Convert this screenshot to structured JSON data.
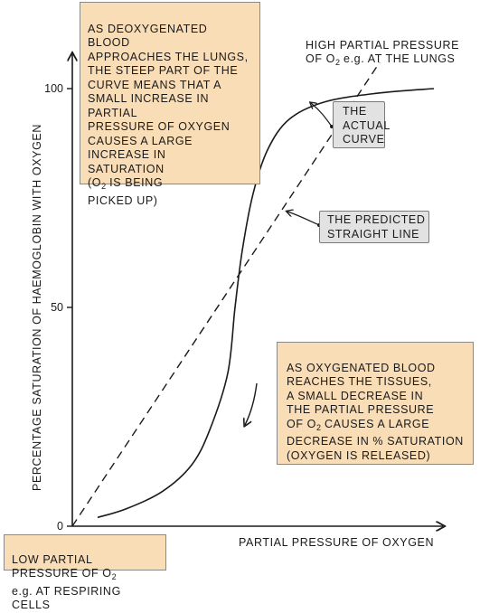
{
  "chart_data": {
    "type": "line",
    "title": "",
    "xlabel": "PARTIAL  PRESSURE  OF  OXYGEN",
    "ylabel": "PERCENTAGE  SATURATION  OF  HAEMOGLOBIN  WITH  OXYGEN",
    "xlim": [
      0,
      100
    ],
    "ylim": [
      0,
      100
    ],
    "y_ticks": [
      {
        "value": 0,
        "label": "0"
      },
      {
        "value": 50,
        "label": "50"
      },
      {
        "value": 100,
        "label": "100"
      }
    ],
    "series": [
      {
        "name": "THE  ACTUAL  CURVE",
        "style": "solid",
        "x": [
          7,
          15,
          25,
          33,
          38,
          43,
          45,
          47,
          50,
          54,
          60,
          70,
          85,
          100
        ],
        "y": [
          2,
          4,
          8,
          14,
          22,
          35,
          50,
          63,
          76,
          86,
          93,
          97,
          99,
          100
        ]
      },
      {
        "name": "THE  PREDICTED  STRAIGHT  LINE",
        "style": "dashed",
        "x": [
          0,
          85
        ],
        "y": [
          0,
          106
        ]
      }
    ],
    "grid": false,
    "legend": "none",
    "colors": {
      "curve": "#1a1a1a",
      "orange_box": "#f9ddb7",
      "grey_box": "#e2e2e2"
    }
  },
  "annotations": {
    "deoxygenated": "AS  DEOXYGENATED  BLOOD\nAPPROACHES  THE  LUNGS,\nTHE  STEEP  PART  OF  THE\nCURVE  MEANS  THAT  A\nSMALL  INCREASE  IN  PARTIAL\nPRESSURE  OF  OXYGEN\nCAUSES  A  LARGE\nINCREASE  IN\nSATURATION",
    "deoxygenated_last_pre": "(O",
    "deoxygenated_last_sub": "2",
    "deoxygenated_last_post": "  IS  BEING\nPICKED  UP)",
    "oxygenated_top": "AS  OXYGENATED  BLOOD\nREACHES  THE  TISSUES,\nA  SMALL  DECREASE  IN\nTHE  PARTIAL  PRESSURE",
    "oxygenated_of": "OF  O",
    "oxygenated_sub": "2",
    "oxygenated_rest": "  CAUSES  A  LARGE\nDECREASE  IN  % SATURATION\n(OXYGEN  IS  RELEASED)",
    "actual_curve": "THE\nACTUAL\nCURVE",
    "predicted_line": "THE  PREDICTED\nSTRAIGHT  LINE",
    "high_line1": "HIGH  PARTIAL  PRESSURE",
    "high_line2_pre": "OF  O",
    "high_line2_sub": "2",
    "high_line2_post": "  e.g.  AT  THE  LUNGS",
    "low_line1_pre": "LOW  PARTIAL  PRESSURE  OF  O",
    "low_line1_sub": "2",
    "low_line2": "e.g.  AT  RESPIRING  CELLS"
  }
}
